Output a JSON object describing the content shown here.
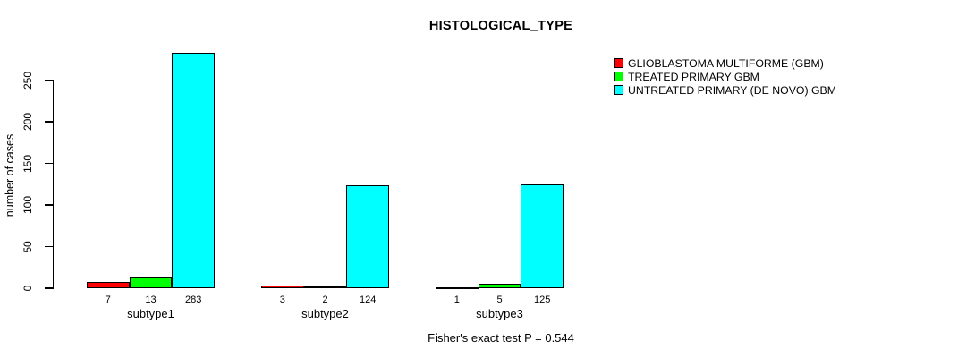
{
  "title": "HISTOLOGICAL_TYPE",
  "ylabel": "number of cases",
  "annotation": "Fisher's exact test P = 0.544",
  "colors": {
    "background": "#ffffff",
    "bar_border": "#000000",
    "text": "#000000"
  },
  "chart_data": {
    "type": "bar",
    "title": "HISTOLOGICAL_TYPE",
    "xlabel": "",
    "ylabel": "number of cases",
    "annotation": "Fisher's exact test P = 0.544",
    "categories": [
      "subtype1",
      "subtype2",
      "subtype3"
    ],
    "series": [
      {
        "name": "GLIOBLASTOMA MULTIFORME (GBM)",
        "color": "#ff0000",
        "values": [
          7,
          3,
          1
        ]
      },
      {
        "name": "TREATED PRIMARY GBM",
        "color": "#00ff00",
        "values": [
          13,
          2,
          5
        ]
      },
      {
        "name": "UNTREATED PRIMARY (DE NOVO) GBM",
        "color": "#00ffff",
        "values": [
          283,
          124,
          125
        ]
      }
    ],
    "bar_value_labels": [
      [
        7,
        13,
        283
      ],
      [
        3,
        2,
        124
      ],
      [
        1,
        5,
        125
      ]
    ],
    "ylim": [
      0,
      283
    ],
    "yticks": [
      0,
      50,
      100,
      150,
      200,
      250
    ],
    "grid": false,
    "legend_position": "right",
    "bar_orientation": "vertical",
    "grouped": true
  }
}
